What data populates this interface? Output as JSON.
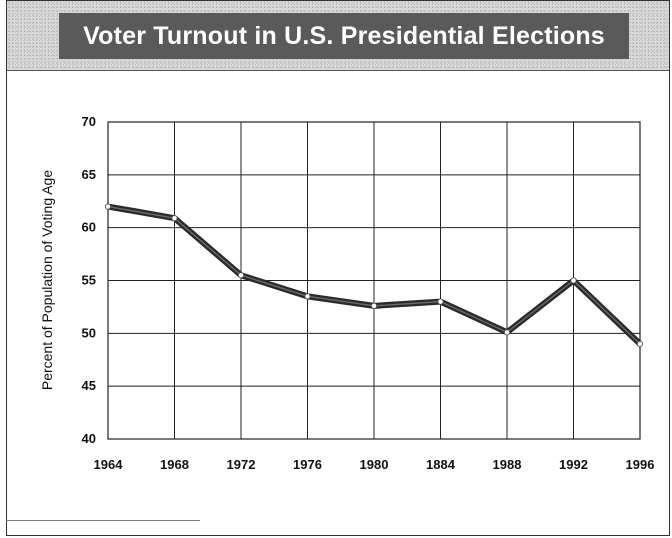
{
  "chart_data": {
    "type": "line",
    "title": "Voter Turnout in U.S. Presidential Elections",
    "xlabel": "",
    "ylabel": "Percent of Population of Voting Age",
    "x": [
      "1964",
      "1968",
      "1972",
      "1976",
      "1980",
      "1884",
      "1988",
      "1992",
      "1996"
    ],
    "series": [
      {
        "values": [
          62,
          60.9,
          55.5,
          53.5,
          52.6,
          53,
          50.1,
          55,
          49
        ]
      }
    ],
    "yticks": [
      40,
      45,
      50,
      55,
      60,
      65,
      70
    ],
    "ylim": [
      40,
      70
    ],
    "grid": true,
    "colors": {
      "line": "#2a2a2a",
      "marker": "#ffffff",
      "grid": "#222222",
      "title_banner": "#5a5a5a"
    }
  }
}
